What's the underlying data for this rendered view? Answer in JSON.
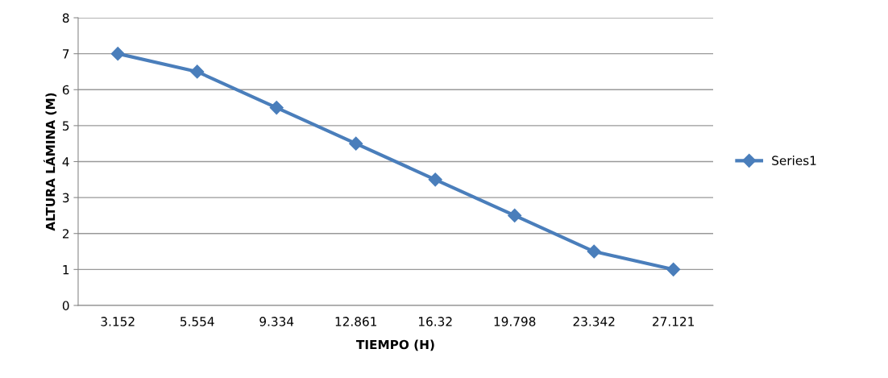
{
  "chart_data": {
    "type": "line",
    "xlabel": "TIEMPO (H)",
    "ylabel": "ALTURA LÁMINA (M)",
    "categories": [
      "3.152",
      "5.554",
      "9.334",
      "12.861",
      "16.32",
      "19.798",
      "23.342",
      "27.121"
    ],
    "series": [
      {
        "name": "Series1",
        "color": "#4a7ebb",
        "values": [
          7,
          6.5,
          5.5,
          4.5,
          3.5,
          2.5,
          1.5,
          1
        ]
      }
    ],
    "ylim": [
      0,
      8
    ],
    "yticks": [
      0,
      1,
      2,
      3,
      4,
      5,
      6,
      7,
      8
    ],
    "grid": "y",
    "legend": "right",
    "marker": "diamond",
    "line_style": "solid"
  }
}
